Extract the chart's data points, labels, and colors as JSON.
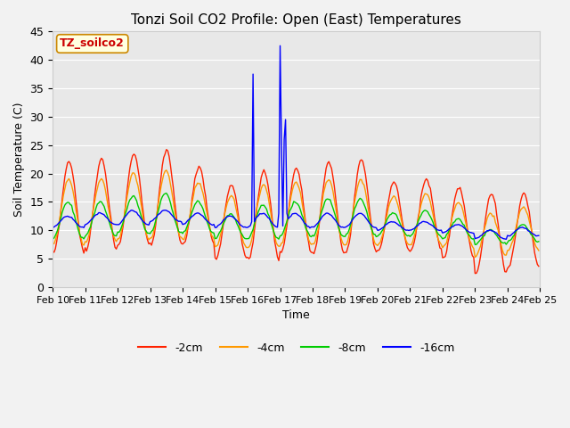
{
  "title": "Tonzi Soil CO2 Profile: Open (East) Temperatures",
  "ylabel": "Soil Temperature (C)",
  "xlabel": "Time",
  "watermark": "TZ_soilco2",
  "ylim": [
    0,
    45
  ],
  "colors": {
    "-2cm": "#ff2200",
    "-4cm": "#ff9900",
    "-8cm": "#00cc00",
    "-16cm": "#0000ff"
  },
  "depths": [
    "-2cm",
    "-4cm",
    "-8cm",
    "-16cm"
  ],
  "n_days": 15,
  "points_per_day": 24,
  "x_tick_labels": [
    "Feb 10",
    "Feb 11",
    "Feb 12",
    "Feb 13",
    "Feb 14",
    "Feb 15",
    "Feb 16",
    "Feb 17",
    "Feb 18",
    "Feb 19",
    "Feb 20",
    "Feb 21",
    "Feb 22",
    "Feb 23",
    "Feb 24",
    "Feb 25"
  ],
  "peaks_2cm": [
    22.0,
    22.5,
    23.5,
    24.0,
    21.0,
    18.0,
    20.5,
    21.0,
    22.0,
    22.5,
    18.5,
    19.0,
    17.5,
    16.5,
    16.5
  ],
  "mins_2cm": [
    6.0,
    6.5,
    7.5,
    7.5,
    7.5,
    5.0,
    4.8,
    6.0,
    6.0,
    6.0,
    6.5,
    6.5,
    5.0,
    2.5,
    3.5
  ],
  "peaks_4cm": [
    19.0,
    19.0,
    20.0,
    20.5,
    18.5,
    16.0,
    18.0,
    18.5,
    19.0,
    19.0,
    16.0,
    16.5,
    15.0,
    13.0,
    14.0
  ],
  "mins_4cm": [
    7.5,
    8.0,
    8.5,
    8.5,
    8.5,
    7.0,
    7.0,
    7.5,
    7.5,
    7.5,
    7.5,
    7.5,
    7.0,
    5.5,
    6.5
  ],
  "peaks_8cm": [
    15.0,
    15.0,
    16.0,
    16.5,
    15.0,
    13.0,
    14.5,
    15.0,
    15.5,
    15.5,
    13.0,
    13.5,
    12.0,
    10.0,
    11.0
  ],
  "mins_8cm": [
    8.5,
    9.0,
    9.5,
    9.5,
    9.5,
    8.5,
    8.5,
    9.0,
    9.0,
    9.0,
    9.0,
    9.0,
    8.5,
    7.5,
    8.0
  ],
  "peaks_16cm": [
    12.5,
    13.0,
    13.5,
    13.5,
    13.0,
    12.5,
    13.0,
    13.0,
    13.0,
    13.0,
    11.5,
    11.5,
    11.0,
    10.0,
    10.5
  ],
  "mins_16cm": [
    10.5,
    11.0,
    11.0,
    11.5,
    11.0,
    10.5,
    10.5,
    10.5,
    10.5,
    10.5,
    10.0,
    10.0,
    9.5,
    8.5,
    9.0
  ],
  "phase_2cm": -1.72,
  "phase_4cm": -1.63,
  "phase_8cm": -1.51,
  "phase_16cm": -1.41,
  "spike1_idx": 148,
  "spike1_val": 37.5,
  "spike2_idx": 168,
  "spike2_val": 42.5,
  "spike3_idx": 172,
  "spike3_val": 29.5,
  "font_size": 9,
  "title_fontsize": 11,
  "fig_width": 6.4,
  "fig_height": 4.8,
  "dpi": 100
}
